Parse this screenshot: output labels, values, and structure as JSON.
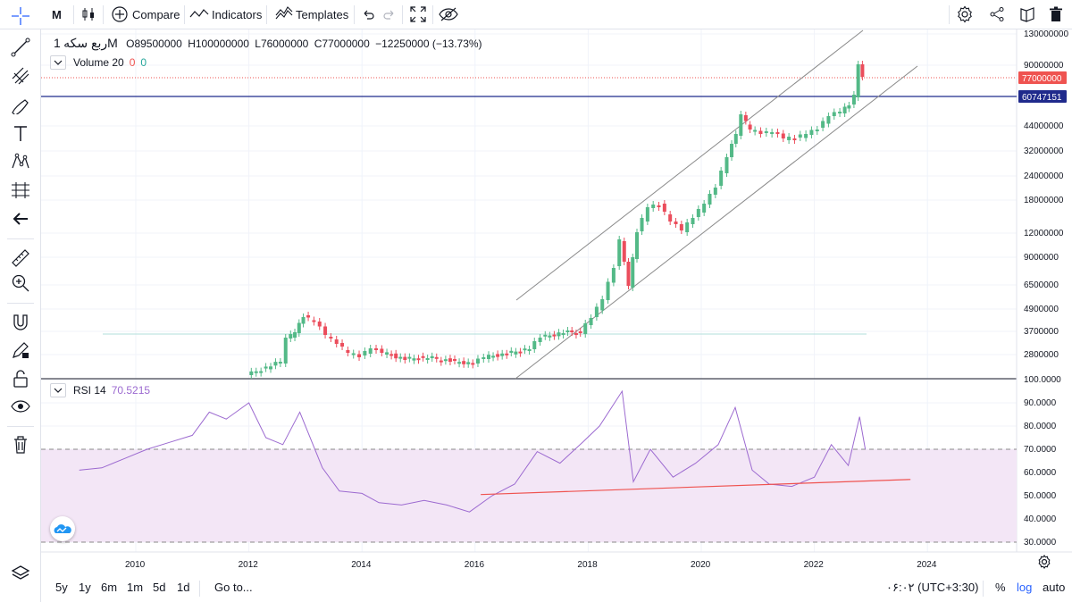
{
  "toolbar": {
    "interval": "M",
    "compare_label": "Compare",
    "indicators_label": "Indicators",
    "templates_label": "Templates"
  },
  "legend": {
    "symbol": "ربع سکه",
    "interval": "1M",
    "open": "O89500000",
    "high": "H100000000",
    "low": "L76000000",
    "close": "C77000000",
    "change": "−12250000 (−13.73%)",
    "volume_label": "Volume 20",
    "volume_v1": "0",
    "volume_v2": "0",
    "rsi_label": "RSI 14",
    "rsi_value": "70.5215"
  },
  "price_axis": {
    "ticks": [
      "130000000",
      "90000000",
      "44000000",
      "32000000",
      "24000000",
      "18000000",
      "12000000",
      "9000000",
      "6500000",
      "4900000",
      "3700000",
      "2800000"
    ],
    "last_price_label": "77000000",
    "hline_label": "60747151"
  },
  "rsi_axis": {
    "ticks": [
      "100.0000",
      "90.0000",
      "80.0000",
      "70.0000",
      "60.0000",
      "50.0000",
      "40.0000",
      "30.0000"
    ]
  },
  "time_axis": {
    "ticks": [
      "2010",
      "2012",
      "2014",
      "2016",
      "2018",
      "2020",
      "2022",
      "2024"
    ]
  },
  "bottom": {
    "ranges": [
      "5y",
      "1y",
      "6m",
      "1m",
      "5d",
      "1d"
    ],
    "goto_label": "Go to...",
    "clock": "۰۶:۰۲ (UTC+3:30)",
    "percent_label": "%",
    "log_label": "log",
    "auto_label": "auto"
  },
  "colors": {
    "up": "#53b987",
    "down": "#eb4d5c",
    "last_price_bg": "#ef5350",
    "hline": "#1f2a8c",
    "rsi_line": "#9c6ad0",
    "rsi_band": "#f3e6f6",
    "channel": "#8a8a8a",
    "trend_red": "#ef5350",
    "link_blue": "#2962ff"
  },
  "chart_data": {
    "type": "candlestick",
    "rsi_series": {
      "name": "RSI 14",
      "x": [
        2009.0,
        2009.4,
        2009.8,
        2010.2,
        2010.6,
        2011.0,
        2011.3,
        2011.6,
        2012.0,
        2012.3,
        2012.6,
        2012.9,
        2013.3,
        2013.6,
        2014.0,
        2014.3,
        2014.7,
        2015.1,
        2015.5,
        2015.9,
        2016.3,
        2016.7,
        2017.1,
        2017.5,
        2017.9,
        2018.2,
        2018.6,
        2018.8,
        2019.1,
        2019.5,
        2019.9,
        2020.3,
        2020.6,
        2020.9,
        2021.2,
        2021.6,
        2022.0,
        2022.3,
        2022.6,
        2022.8,
        2022.9
      ],
      "y": [
        61,
        62,
        66,
        70,
        73,
        76,
        86,
        83,
        90,
        75,
        72,
        86,
        62,
        52,
        51,
        47,
        46,
        48,
        46,
        43,
        50,
        55,
        69,
        64,
        73,
        80,
        95,
        56,
        70,
        58,
        64,
        72,
        88,
        61,
        55,
        54,
        58,
        72,
        63,
        84,
        70
      ]
    },
    "rsi_overbought": 70,
    "rsi_oversold": 30,
    "rsi_ylim": [
      30,
      100
    ],
    "rsi_trendline": {
      "x": [
        2016.1,
        2023.7
      ],
      "y": [
        50.5,
        57
      ]
    }
  }
}
